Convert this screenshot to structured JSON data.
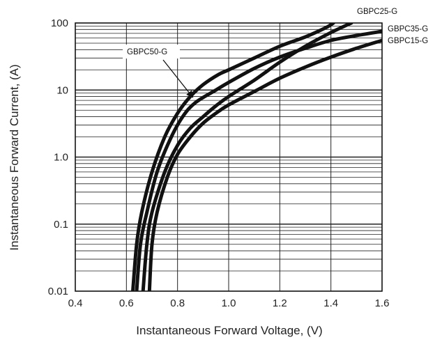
{
  "chart_data": {
    "type": "line",
    "title": "",
    "xlabel": "Instantaneous Forward  Voltage, (V)",
    "ylabel": "Instantaneous Forward Current, (A)",
    "x_scale": "linear",
    "y_scale": "log",
    "xlim": [
      0.4,
      1.6
    ],
    "ylim": [
      0.01,
      100
    ],
    "x_ticks": [
      0.4,
      0.6,
      0.8,
      1.0,
      1.2,
      1.4,
      1.6
    ],
    "x_tick_labels": [
      "0.4",
      "0.6",
      "0.8",
      "1.0",
      "1.2",
      "1.4",
      "1.6"
    ],
    "y_ticks": [
      0.01,
      0.1,
      1,
      10,
      100
    ],
    "y_tick_labels": [
      "0.01",
      "0.1",
      "1.0",
      "10",
      "100"
    ],
    "grid": true,
    "line_color": "#111111",
    "series": [
      {
        "name": "GBPC50-G",
        "points": [
          [
            0.625,
            0.01
          ],
          [
            0.64,
            0.05
          ],
          [
            0.66,
            0.15
          ],
          [
            0.7,
            0.6
          ],
          [
            0.75,
            2.0
          ],
          [
            0.8,
            4.5
          ],
          [
            0.85,
            8.0
          ],
          [
            0.9,
            12.0
          ],
          [
            0.96,
            17.0
          ],
          [
            1.0,
            20.0
          ],
          [
            1.1,
            30.0
          ],
          [
            1.2,
            45.0
          ],
          [
            1.3,
            62.0
          ],
          [
            1.38,
            85.0
          ],
          [
            1.41,
            100.0
          ]
        ]
      },
      {
        "name": "GBPC25-G",
        "points": [
          [
            0.665,
            0.01
          ],
          [
            0.68,
            0.05
          ],
          [
            0.7,
            0.15
          ],
          [
            0.75,
            0.6
          ],
          [
            0.8,
            1.5
          ],
          [
            0.85,
            2.7
          ],
          [
            0.9,
            4.0
          ],
          [
            0.95,
            5.8
          ],
          [
            1.0,
            8.0
          ],
          [
            1.1,
            14.0
          ],
          [
            1.2,
            26.0
          ],
          [
            1.3,
            45.0
          ],
          [
            1.4,
            72.0
          ],
          [
            1.48,
            100.0
          ]
        ]
      },
      {
        "name": "GBPC35-G",
        "points": [
          [
            0.64,
            0.01
          ],
          [
            0.655,
            0.05
          ],
          [
            0.68,
            0.15
          ],
          [
            0.72,
            0.6
          ],
          [
            0.77,
            1.8
          ],
          [
            0.82,
            4.0
          ],
          [
            0.87,
            6.5
          ],
          [
            0.95,
            10.0
          ],
          [
            1.0,
            13.0
          ],
          [
            1.1,
            21.0
          ],
          [
            1.2,
            31.0
          ],
          [
            1.3,
            42.0
          ],
          [
            1.4,
            55.0
          ],
          [
            1.5,
            65.0
          ],
          [
            1.6,
            75.0
          ]
        ]
      },
      {
        "name": "GBPC15-G",
        "points": [
          [
            0.69,
            0.01
          ],
          [
            0.7,
            0.05
          ],
          [
            0.72,
            0.15
          ],
          [
            0.76,
            0.5
          ],
          [
            0.8,
            1.1
          ],
          [
            0.85,
            2.0
          ],
          [
            0.9,
            3.2
          ],
          [
            0.95,
            4.5
          ],
          [
            1.0,
            6.0
          ],
          [
            1.1,
            9.5
          ],
          [
            1.2,
            15.0
          ],
          [
            1.3,
            22.0
          ],
          [
            1.4,
            31.0
          ],
          [
            1.5,
            42.0
          ],
          [
            1.6,
            55.0
          ]
        ]
      }
    ],
    "annotations": [
      {
        "text": "GBPC50-G",
        "arrow_to": [
          0.87,
          6.0
        ]
      },
      {
        "text": "GBPC25-G"
      },
      {
        "text": "GBPC35-G"
      },
      {
        "text": "GBPC15-G"
      }
    ]
  }
}
